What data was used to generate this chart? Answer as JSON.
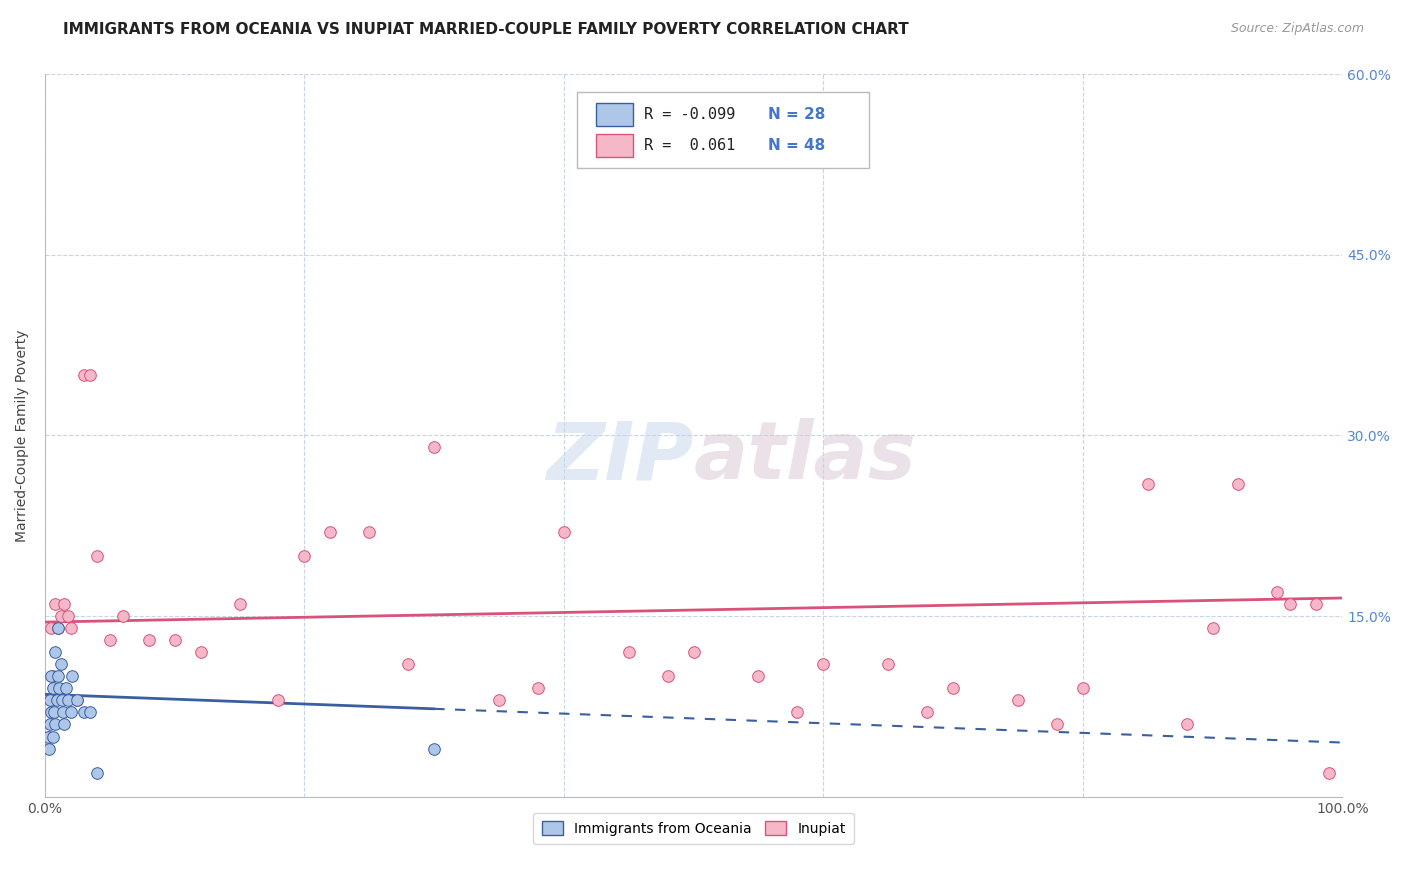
{
  "title": "IMMIGRANTS FROM OCEANIA VS INUPIAT MARRIED-COUPLE FAMILY POVERTY CORRELATION CHART",
  "source": "Source: ZipAtlas.com",
  "ylabel": "Married-Couple Family Poverty",
  "xlim": [
    0,
    100
  ],
  "ylim": [
    0,
    60
  ],
  "watermark": "ZIPatlas",
  "series1_color": "#aec6e8",
  "series2_color": "#f5b8c8",
  "line1_color": "#3a5fa0",
  "line2_color": "#d9527a",
  "background_color": "#ffffff",
  "grid_color": "#c8d4e8",
  "title_fontsize": 11,
  "axis_label_fontsize": 10,
  "tick_fontsize": 10,
  "legend_fontsize": 11,
  "blue_scatter_x": [
    0.2,
    0.3,
    0.4,
    0.4,
    0.5,
    0.5,
    0.6,
    0.6,
    0.7,
    0.8,
    0.8,
    0.9,
    1.0,
    1.0,
    1.1,
    1.2,
    1.3,
    1.4,
    1.5,
    1.6,
    1.8,
    2.0,
    2.1,
    2.5,
    3.0,
    3.5,
    4.0,
    30.0
  ],
  "blue_scatter_y": [
    5,
    4,
    6,
    8,
    7,
    10,
    5,
    9,
    7,
    6,
    12,
    8,
    10,
    14,
    9,
    11,
    8,
    7,
    6,
    9,
    8,
    7,
    10,
    8,
    7,
    7,
    2,
    4
  ],
  "pink_scatter_x": [
    0.3,
    0.5,
    0.6,
    0.8,
    1.0,
    1.2,
    1.5,
    1.8,
    2.0,
    2.5,
    3.0,
    3.5,
    4.0,
    5.0,
    6.0,
    8.0,
    10.0,
    12.0,
    15.0,
    18.0,
    20.0,
    22.0,
    25.0,
    28.0,
    30.0,
    35.0,
    38.0,
    40.0,
    45.0,
    48.0,
    50.0,
    55.0,
    58.0,
    60.0,
    65.0,
    68.0,
    70.0,
    75.0,
    78.0,
    80.0,
    85.0,
    88.0,
    90.0,
    92.0,
    95.0,
    96.0,
    98.0,
    99.0
  ],
  "pink_scatter_y": [
    5,
    14,
    10,
    16,
    14,
    15,
    16,
    15,
    14,
    8,
    35,
    35,
    20,
    13,
    15,
    13,
    13,
    12,
    16,
    8,
    20,
    22,
    22,
    11,
    29,
    8,
    9,
    22,
    12,
    10,
    12,
    10,
    7,
    11,
    11,
    7,
    9,
    8,
    6,
    9,
    26,
    6,
    14,
    26,
    17,
    16,
    16,
    2
  ],
  "blue_line_start_x": 0,
  "blue_line_start_y": 8.5,
  "blue_line_end_x": 100,
  "blue_line_end_y": 4.5,
  "blue_solid_end_x": 30,
  "pink_line_start_x": 0,
  "pink_line_start_y": 14.5,
  "pink_line_end_x": 100,
  "pink_line_end_y": 16.5
}
